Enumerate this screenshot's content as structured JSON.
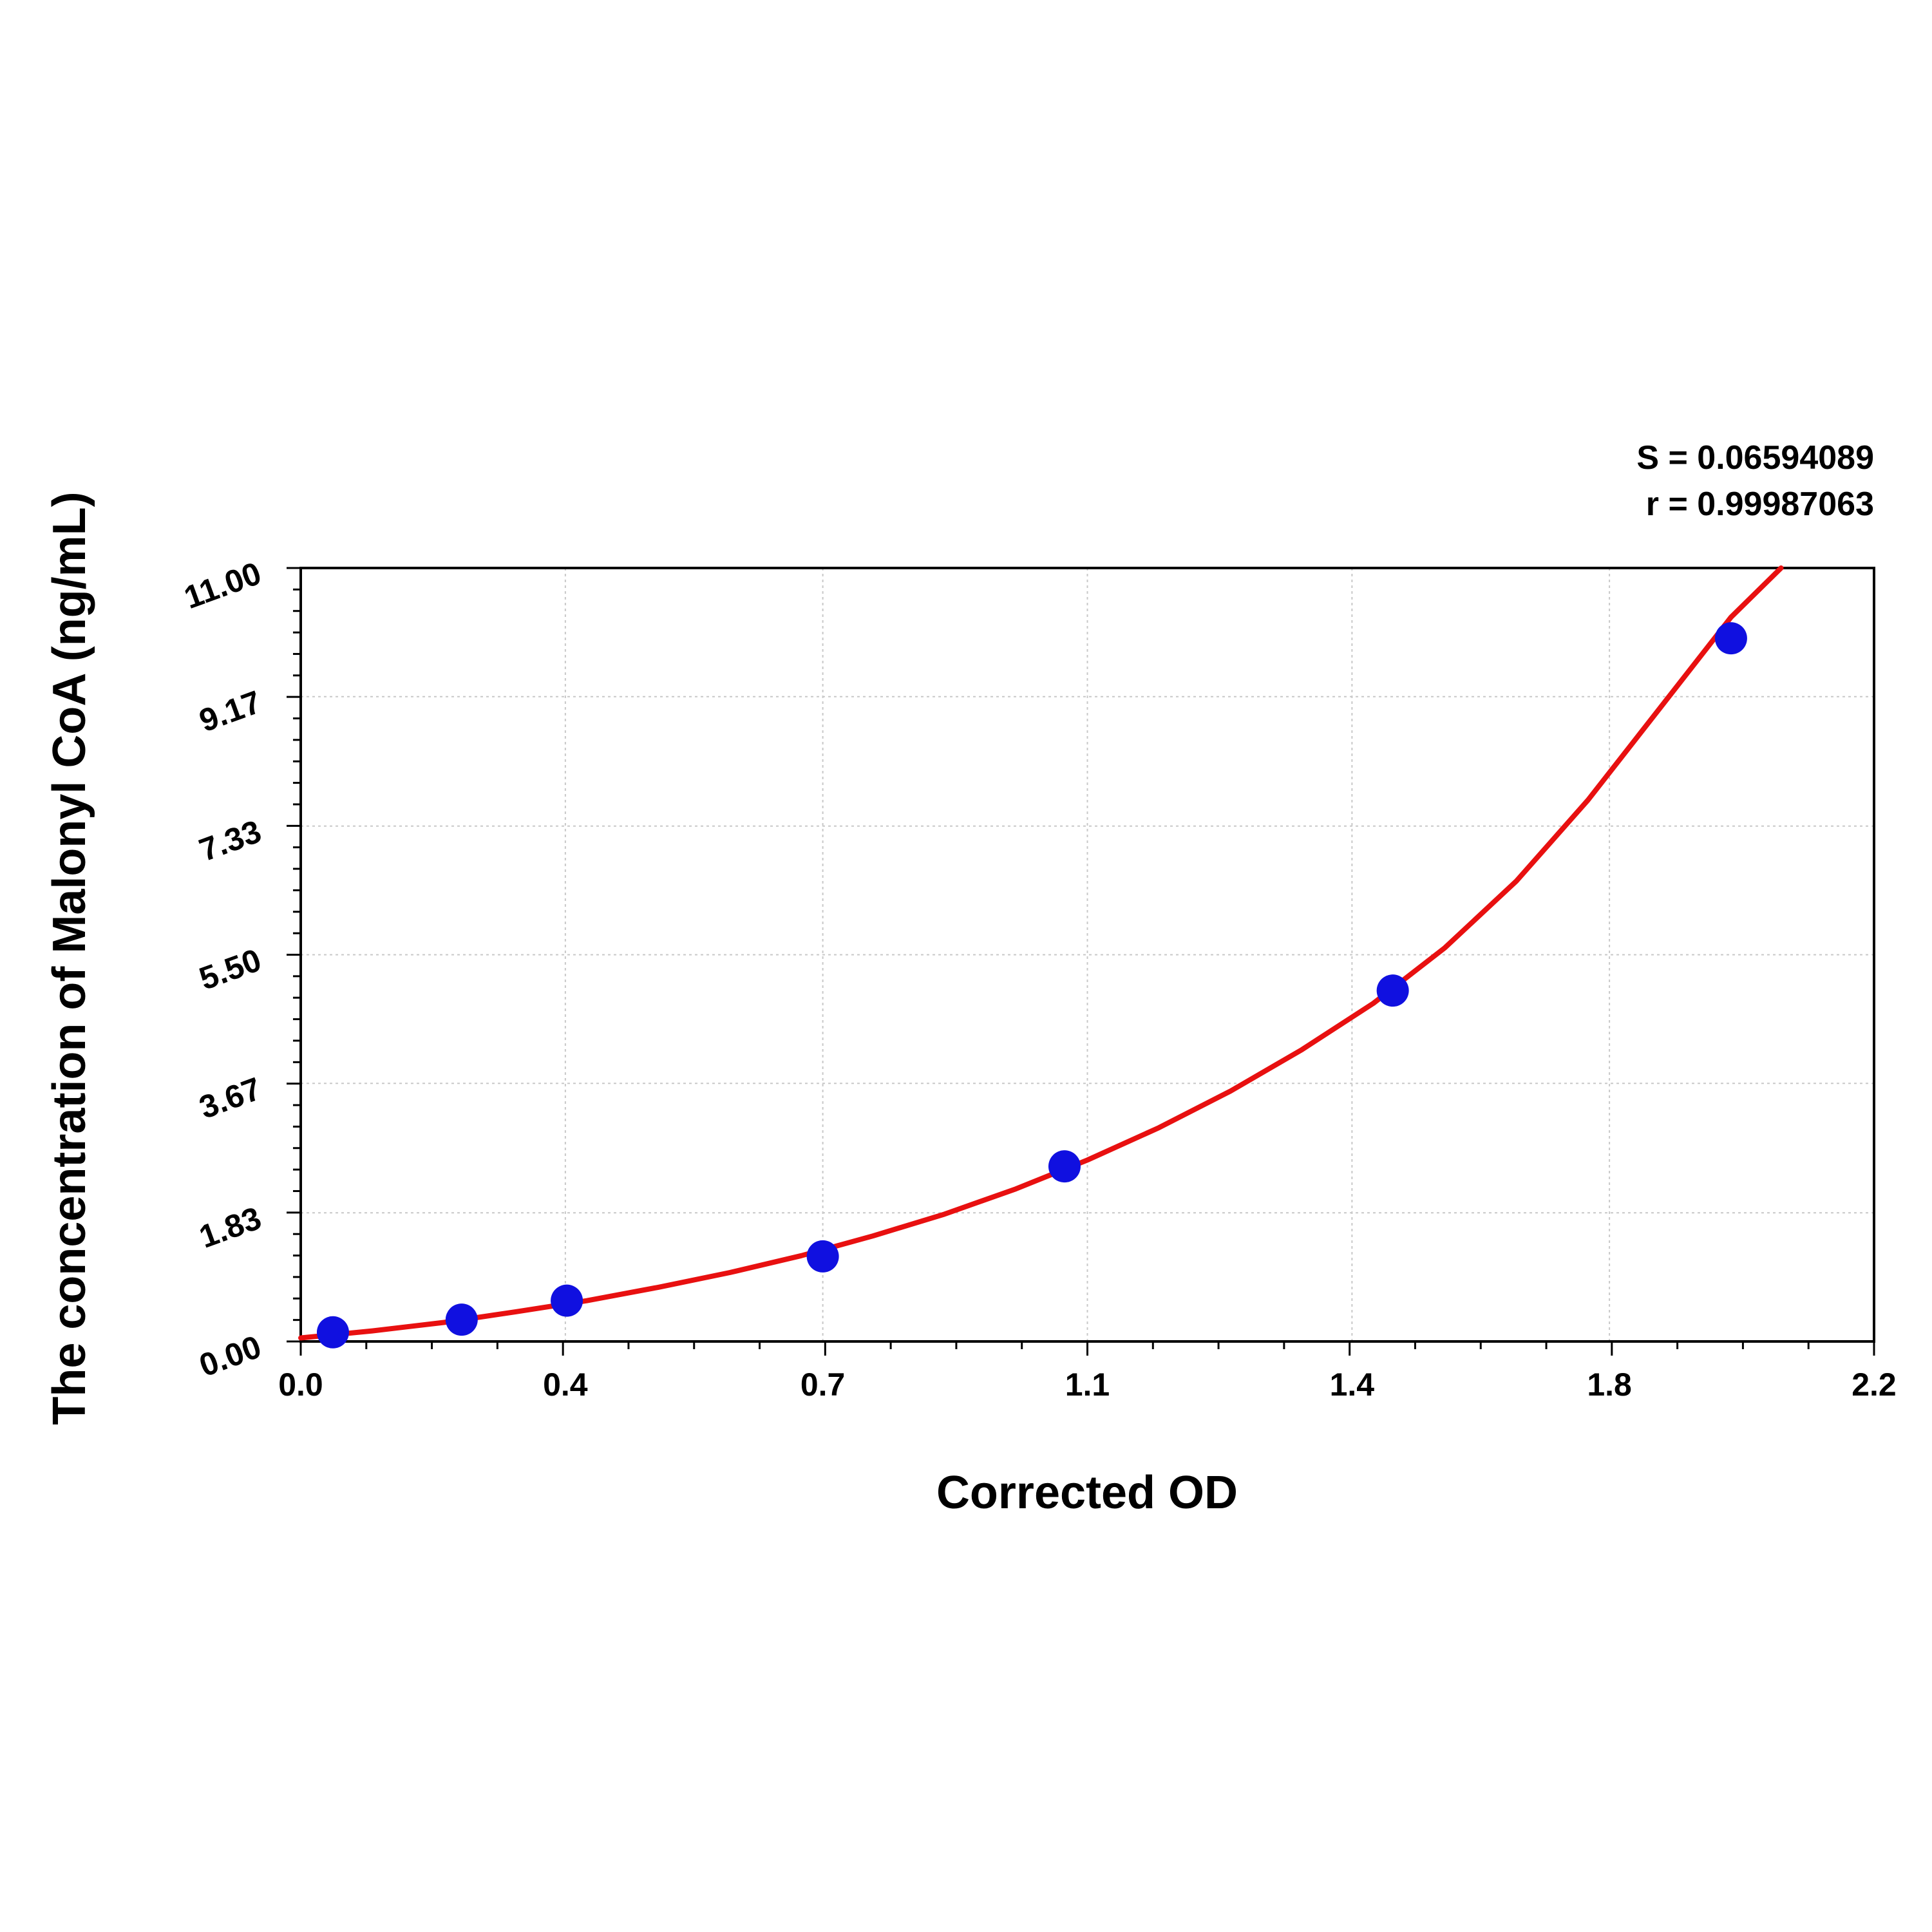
{
  "chart_data": {
    "type": "scatter",
    "title": "",
    "xlabel": "Corrected OD",
    "ylabel": "The concentration of Malonyl CoA (ng/mL)",
    "xlim": [
      0,
      2.2
    ],
    "ylim": [
      0,
      11
    ],
    "x_ticks": [
      0,
      0.37,
      0.73,
      1.1,
      1.47,
      1.83,
      2.2
    ],
    "x_tick_labels": [
      "0.0",
      "0.4",
      "0.7",
      "1.1",
      "1.4",
      "1.8",
      "2.2"
    ],
    "y_ticks": [
      0,
      1.83,
      3.67,
      5.5,
      7.33,
      9.17,
      11
    ],
    "y_tick_labels": [
      "0.00",
      "1.83",
      "3.67",
      "5.50",
      "7.33",
      "9.17",
      "11.00"
    ],
    "grid": true,
    "stats": {
      "s": "S = 0.06594089",
      "r": "r = 0.99987063"
    },
    "series": [
      {
        "type": "scatter",
        "color": "#1010e0",
        "x": [
          0.045,
          0.225,
          0.372,
          0.73,
          1.068,
          1.527,
          2.0
        ],
        "y": [
          0.13,
          0.31,
          0.58,
          1.21,
          2.49,
          4.99,
          10.0
        ]
      },
      {
        "type": "line",
        "color": "#e81010",
        "x": [
          0.0,
          0.1,
          0.2,
          0.3,
          0.4,
          0.5,
          0.6,
          0.7,
          0.8,
          0.9,
          1.0,
          1.1,
          1.2,
          1.3,
          1.4,
          1.5,
          1.6,
          1.7,
          1.8,
          1.9,
          2.0,
          2.07
        ],
        "y": [
          0.05,
          0.15,
          0.27,
          0.42,
          0.58,
          0.77,
          0.98,
          1.22,
          1.5,
          1.81,
          2.17,
          2.58,
          3.04,
          3.56,
          4.15,
          4.81,
          5.6,
          6.55,
          7.7,
          9.0,
          10.3,
          11.0
        ]
      }
    ]
  }
}
